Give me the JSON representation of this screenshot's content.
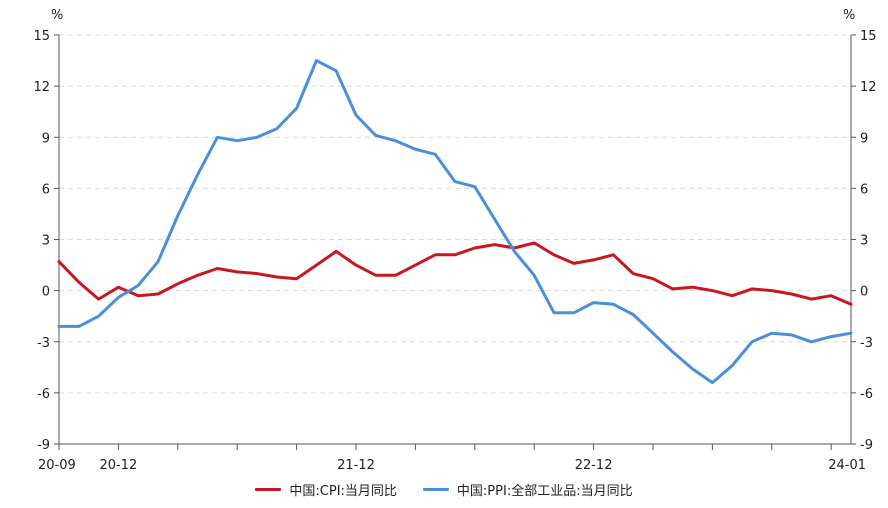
{
  "chart_data": {
    "type": "line",
    "left_axis_unit": "%",
    "right_axis_unit": "%",
    "y_ticks": [
      -9,
      -6,
      -3,
      0,
      3,
      6,
      9,
      12,
      15
    ],
    "ylim": [
      -9,
      15
    ],
    "x_tick_labels": [
      "20-09",
      "20-12",
      "21-12",
      "22-12",
      "24-01"
    ],
    "x": [
      "20-09",
      "20-10",
      "20-11",
      "20-12",
      "21-01",
      "21-02",
      "21-03",
      "21-04",
      "21-05",
      "21-06",
      "21-07",
      "21-08",
      "21-09",
      "21-10",
      "21-11",
      "21-12",
      "22-01",
      "22-02",
      "22-03",
      "22-04",
      "22-05",
      "22-06",
      "22-07",
      "22-08",
      "22-09",
      "22-10",
      "22-11",
      "22-12",
      "23-01",
      "23-02",
      "23-03",
      "23-04",
      "23-05",
      "23-06",
      "23-07",
      "23-08",
      "23-09",
      "23-10",
      "23-11",
      "23-12",
      "24-01"
    ],
    "grid": true,
    "legend_position": "bottom",
    "series": [
      {
        "name": "中国:CPI:当月同比",
        "color": "#c8171e",
        "values": [
          1.7,
          0.5,
          -0.5,
          0.2,
          -0.3,
          -0.2,
          0.4,
          0.9,
          1.3,
          1.1,
          1.0,
          0.8,
          0.7,
          1.5,
          2.3,
          1.5,
          0.9,
          0.9,
          1.5,
          2.1,
          2.1,
          2.5,
          2.7,
          2.5,
          2.8,
          2.1,
          1.6,
          1.8,
          2.1,
          1.0,
          0.7,
          0.1,
          0.2,
          0.0,
          -0.3,
          0.1,
          0.0,
          -0.2,
          -0.5,
          -0.3,
          -0.8
        ]
      },
      {
        "name": "中国:PPI:全部工业品:当月同比",
        "color": "#4b8fdb",
        "values": [
          -2.1,
          -2.1,
          -1.5,
          -0.4,
          0.3,
          1.7,
          4.4,
          6.8,
          9.0,
          8.8,
          9.0,
          9.5,
          10.7,
          13.5,
          12.9,
          10.3,
          9.1,
          8.8,
          8.3,
          8.0,
          6.4,
          6.1,
          4.2,
          2.3,
          0.9,
          -1.3,
          -1.3,
          -0.7,
          -0.8,
          -1.4,
          -2.5,
          -3.6,
          -4.6,
          -5.4,
          -4.4,
          -3.0,
          -2.5,
          -2.6,
          -3.0,
          -2.7,
          -2.5
        ]
      }
    ]
  }
}
